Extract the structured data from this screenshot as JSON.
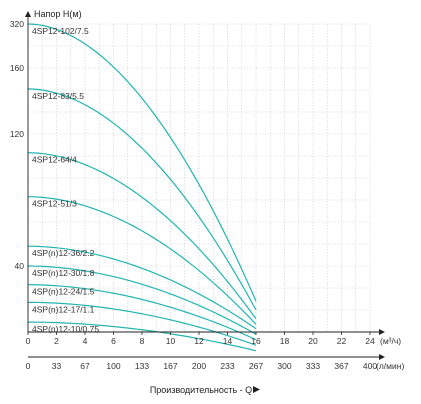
{
  "chart_data": {
    "type": "line",
    "ylabel": "Напор Н(м)",
    "xlabel": "Производительность - Q",
    "x_unit_top": "(м³/ч)",
    "x_unit_bottom": "(л/мин)",
    "grid": true,
    "x_ticks_m3h": [
      "0",
      "2",
      "4",
      "6",
      "8",
      "10",
      "12",
      "14",
      "16",
      "18",
      "20",
      "22",
      "24"
    ],
    "x_ticks_lmin": [
      "0",
      "33",
      "67",
      "100",
      "133",
      "167",
      "200",
      "233",
      "267",
      "300",
      "333",
      "367",
      "400"
    ],
    "y_tick_labels": [
      {
        "label": "320",
        "row": 0
      },
      {
        "label": "160",
        "row": 2
      },
      {
        "label": "120",
        "row": 5
      },
      {
        "label": "40",
        "row": 11
      }
    ],
    "y_rows": 14,
    "x_max": 24,
    "series": [
      {
        "name": "4SP12-102/7.5",
        "shutoff_row": 0.0,
        "end_row": 12.6
      },
      {
        "name": "4SP12-83/5.5",
        "shutoff_row": 2.95,
        "end_row": 13.0
      },
      {
        "name": "4SP12-64/4",
        "shutoff_row": 5.85,
        "end_row": 13.4
      },
      {
        "name": "4SP12-51/3",
        "shutoff_row": 7.85,
        "end_row": 13.65
      },
      {
        "name": "4SP(n)12-36/2.2",
        "shutoff_row": 10.1,
        "end_row": 13.85
      },
      {
        "name": "4SP(n)12-30/1.8",
        "shutoff_row": 11.0,
        "end_row": 14.1
      },
      {
        "name": "4SP(n)12-24/1.5",
        "shutoff_row": 11.85,
        "end_row": 14.35
      },
      {
        "name": "4SP(n)12-17/1.1",
        "shutoff_row": 12.65,
        "end_row": 14.6
      },
      {
        "name": "4SP(n)12-10/0.75",
        "shutoff_row": 13.55,
        "end_row": 14.85
      }
    ],
    "curve_end_x": 16,
    "series_color": "#23b5b0"
  }
}
